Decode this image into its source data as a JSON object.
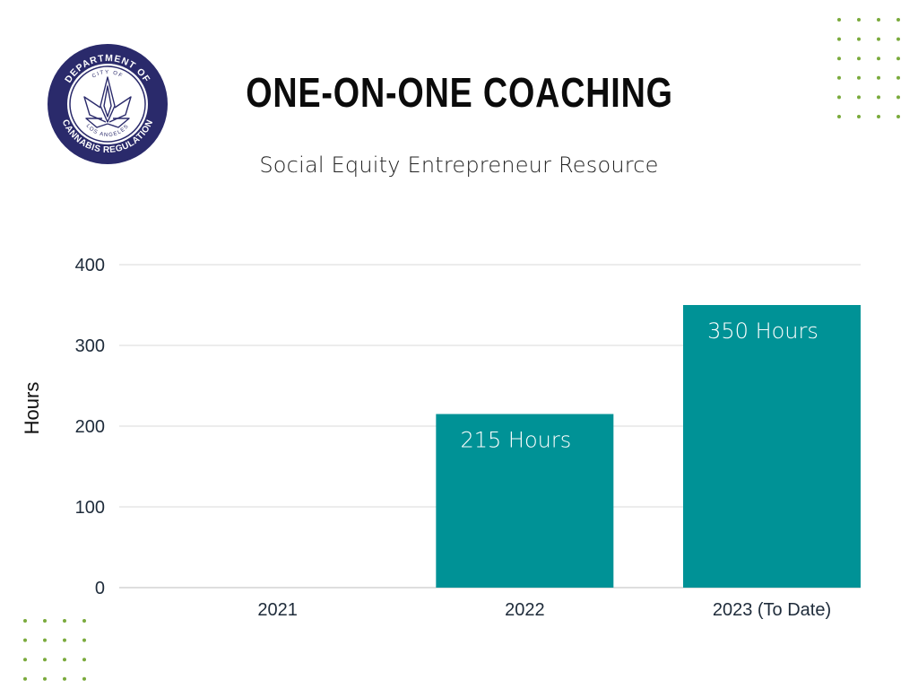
{
  "header": {
    "title": "ONE-ON-ONE COACHING",
    "subtitle": "Social Equity Entrepreneur Resource"
  },
  "seal": {
    "top_text": "DEPARTMENT OF",
    "inner_top": "CITY OF",
    "inner_bottom": "LOS ANGELES",
    "bottom_text": "CANNABIS REGULATION",
    "color": "#2a2a6b"
  },
  "colors": {
    "bar": "#009296",
    "grid": "#d9d9d9",
    "dots": "#7aaa3c"
  },
  "chart_data": {
    "type": "bar",
    "categories": [
      "2021",
      "2022",
      "2023 (To Date)"
    ],
    "values": [
      0,
      215,
      350
    ],
    "data_labels": [
      "",
      "215 Hours",
      "350 Hours"
    ],
    "ylabel": "Hours",
    "xlabel": "",
    "ylim": [
      0,
      400
    ],
    "yticks": [
      0,
      100,
      200,
      300,
      400
    ],
    "grid": true,
    "legend": "none"
  }
}
